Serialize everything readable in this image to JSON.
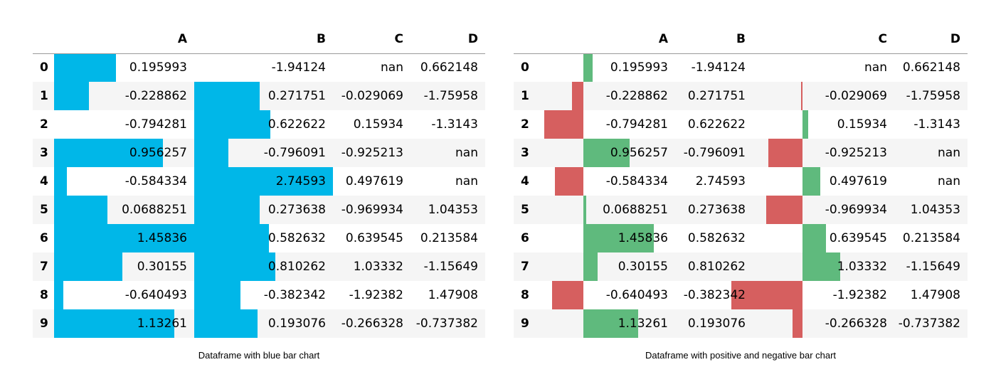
{
  "left": {
    "caption": "Dataframe with blue bar chart",
    "columns": [
      "A",
      "B",
      "C",
      "D"
    ],
    "bar_color": "#00b7e8",
    "bar_mode": "min-max",
    "bar_columns": [
      "A",
      "B"
    ]
  },
  "right": {
    "caption": "Dataframe with positive and negative bar chart",
    "columns": [
      "A",
      "B",
      "C",
      "D"
    ],
    "bar_mode": "zero-centered",
    "bar_columns": [
      "A",
      "C"
    ],
    "positive_color": "#5fba7d",
    "negative_color": "#d65f5f"
  },
  "rows": [
    {
      "index": "0",
      "A": "0.195993",
      "B": "-1.94124",
      "C": "nan",
      "D": "0.662148"
    },
    {
      "index": "1",
      "A": "-0.228862",
      "B": "0.271751",
      "C": "-0.029069",
      "D": "-1.75958"
    },
    {
      "index": "2",
      "A": "-0.794281",
      "B": "0.622622",
      "C": "0.15934",
      "D": "-1.3143"
    },
    {
      "index": "3",
      "A": "0.956257",
      "B": "-0.796091",
      "C": "-0.925213",
      "D": "nan"
    },
    {
      "index": "4",
      "A": "-0.584334",
      "B": "2.74593",
      "C": "0.497619",
      "D": "nan"
    },
    {
      "index": "5",
      "A": "0.0688251",
      "B": "0.273638",
      "C": "-0.969934",
      "D": "1.04353"
    },
    {
      "index": "6",
      "A": "1.45836",
      "B": "0.582632",
      "C": "0.639545",
      "D": "0.213584"
    },
    {
      "index": "7",
      "A": "0.30155",
      "B": "0.810262",
      "C": "1.03332",
      "D": "-1.15649"
    },
    {
      "index": "8",
      "A": "-0.640493",
      "B": "-0.382342",
      "C": "-1.92382",
      "D": "1.47908"
    },
    {
      "index": "9",
      "A": "1.13261",
      "B": "0.193076",
      "C": "-0.266328",
      "D": "-0.737382"
    }
  ]
}
